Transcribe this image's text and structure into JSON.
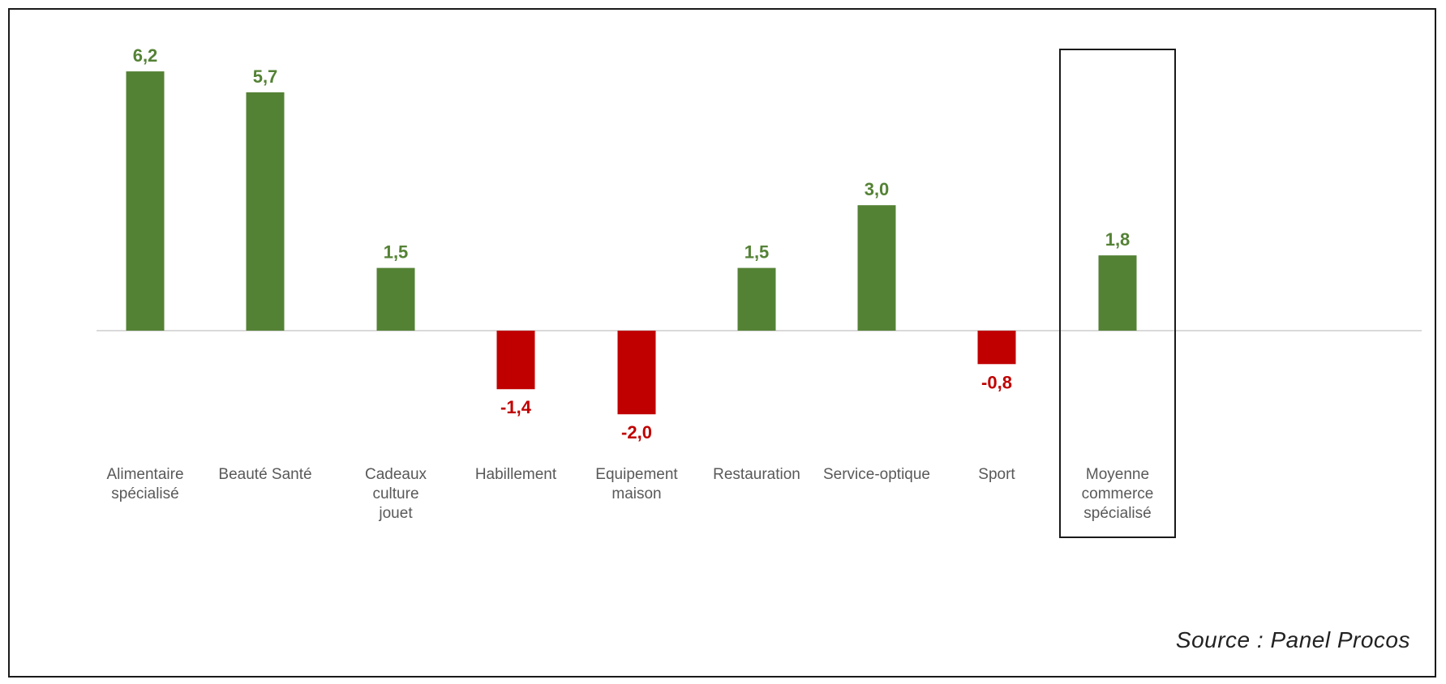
{
  "chart_data": {
    "type": "bar",
    "categories": [
      [
        "Alimentaire",
        "spécialisé"
      ],
      [
        "Beauté Santé"
      ],
      [
        "Cadeaux",
        "culture",
        "jouet"
      ],
      [
        "Habillement"
      ],
      [
        "Equipement",
        "maison"
      ],
      [
        "Restauration"
      ],
      [
        "Service-optique"
      ],
      [
        "Sport"
      ],
      [
        "Moyenne",
        "commerce",
        "spécialisé"
      ]
    ],
    "values": [
      6.2,
      5.7,
      1.5,
      -1.4,
      -2.0,
      1.5,
      3.0,
      -0.8,
      1.8
    ],
    "value_labels": [
      "6,2",
      "5,7",
      "1,5",
      "-1,4",
      "-2,0",
      "1,5",
      "3,0",
      "-0,8",
      "1,8"
    ],
    "highlighted_category_index": 8,
    "ylim": [
      -2.0,
      6.2
    ],
    "grid": false,
    "colors": {
      "positive": "#548235",
      "negative": "#c00000",
      "axis": "#d9d9d9",
      "category_text": "#595959",
      "highlight_border": "#1a1a1a"
    }
  },
  "source": "Source : Panel Procos"
}
